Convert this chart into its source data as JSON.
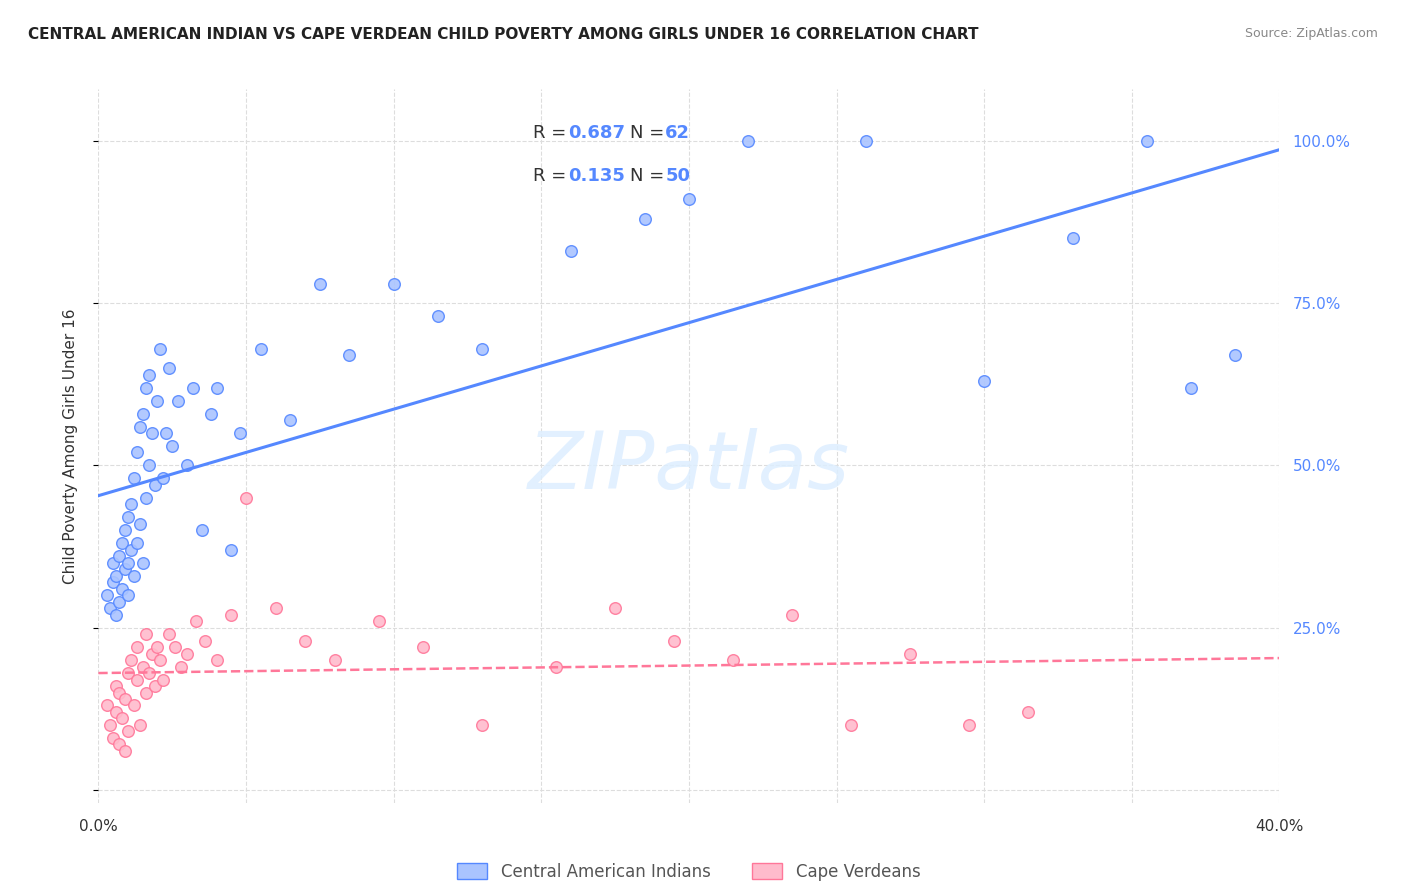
{
  "title": "CENTRAL AMERICAN INDIAN VS CAPE VERDEAN CHILD POVERTY AMONG GIRLS UNDER 16 CORRELATION CHART",
  "source": "Source: ZipAtlas.com",
  "ylabel": "Child Poverty Among Girls Under 16",
  "xmin": 0.0,
  "xmax": 0.4,
  "ymin": -0.02,
  "ymax": 1.08,
  "yticks": [
    0.0,
    0.25,
    0.5,
    0.75,
    1.0
  ],
  "yticklabels_right": [
    "",
    "25.0%",
    "50.0%",
    "75.0%",
    "100.0%"
  ],
  "blue_color": "#5588ff",
  "blue_fill": "#aac4ff",
  "pink_color": "#ff7799",
  "pink_fill": "#ffbbcc",
  "blue_r": "0.687",
  "blue_n": "62",
  "pink_r": "0.135",
  "pink_n": "50",
  "watermark": "ZIPatlas",
  "legend_label_blue": "Central American Indians",
  "legend_label_pink": "Cape Verdeans",
  "blue_scatter_x": [
    0.003,
    0.004,
    0.005,
    0.005,
    0.006,
    0.006,
    0.007,
    0.007,
    0.008,
    0.008,
    0.009,
    0.009,
    0.01,
    0.01,
    0.01,
    0.011,
    0.011,
    0.012,
    0.012,
    0.013,
    0.013,
    0.014,
    0.014,
    0.015,
    0.015,
    0.016,
    0.016,
    0.017,
    0.017,
    0.018,
    0.019,
    0.02,
    0.021,
    0.022,
    0.023,
    0.024,
    0.025,
    0.027,
    0.03,
    0.032,
    0.035,
    0.038,
    0.04,
    0.045,
    0.048,
    0.055,
    0.065,
    0.075,
    0.085,
    0.1,
    0.115,
    0.13,
    0.16,
    0.185,
    0.2,
    0.22,
    0.26,
    0.3,
    0.33,
    0.355,
    0.37,
    0.385
  ],
  "blue_scatter_y": [
    0.3,
    0.28,
    0.32,
    0.35,
    0.27,
    0.33,
    0.29,
    0.36,
    0.31,
    0.38,
    0.34,
    0.4,
    0.3,
    0.35,
    0.42,
    0.37,
    0.44,
    0.33,
    0.48,
    0.38,
    0.52,
    0.41,
    0.56,
    0.35,
    0.58,
    0.45,
    0.62,
    0.5,
    0.64,
    0.55,
    0.47,
    0.6,
    0.68,
    0.48,
    0.55,
    0.65,
    0.53,
    0.6,
    0.5,
    0.62,
    0.4,
    0.58,
    0.62,
    0.37,
    0.55,
    0.68,
    0.57,
    0.78,
    0.67,
    0.78,
    0.73,
    0.68,
    0.83,
    0.88,
    0.91,
    1.0,
    1.0,
    0.63,
    0.85,
    1.0,
    0.62,
    0.67
  ],
  "pink_scatter_x": [
    0.003,
    0.004,
    0.005,
    0.006,
    0.006,
    0.007,
    0.007,
    0.008,
    0.009,
    0.009,
    0.01,
    0.01,
    0.011,
    0.012,
    0.013,
    0.013,
    0.014,
    0.015,
    0.016,
    0.016,
    0.017,
    0.018,
    0.019,
    0.02,
    0.021,
    0.022,
    0.024,
    0.026,
    0.028,
    0.03,
    0.033,
    0.036,
    0.04,
    0.045,
    0.05,
    0.06,
    0.07,
    0.08,
    0.095,
    0.11,
    0.13,
    0.155,
    0.175,
    0.195,
    0.215,
    0.235,
    0.255,
    0.275,
    0.295,
    0.315
  ],
  "pink_scatter_y": [
    0.13,
    0.1,
    0.08,
    0.12,
    0.16,
    0.07,
    0.15,
    0.11,
    0.06,
    0.14,
    0.18,
    0.09,
    0.2,
    0.13,
    0.17,
    0.22,
    0.1,
    0.19,
    0.15,
    0.24,
    0.18,
    0.21,
    0.16,
    0.22,
    0.2,
    0.17,
    0.24,
    0.22,
    0.19,
    0.21,
    0.26,
    0.23,
    0.2,
    0.27,
    0.45,
    0.28,
    0.23,
    0.2,
    0.26,
    0.22,
    0.1,
    0.19,
    0.28,
    0.23,
    0.2,
    0.27,
    0.1,
    0.21,
    0.1,
    0.12
  ],
  "background_color": "#ffffff",
  "grid_color": "#dddddd"
}
